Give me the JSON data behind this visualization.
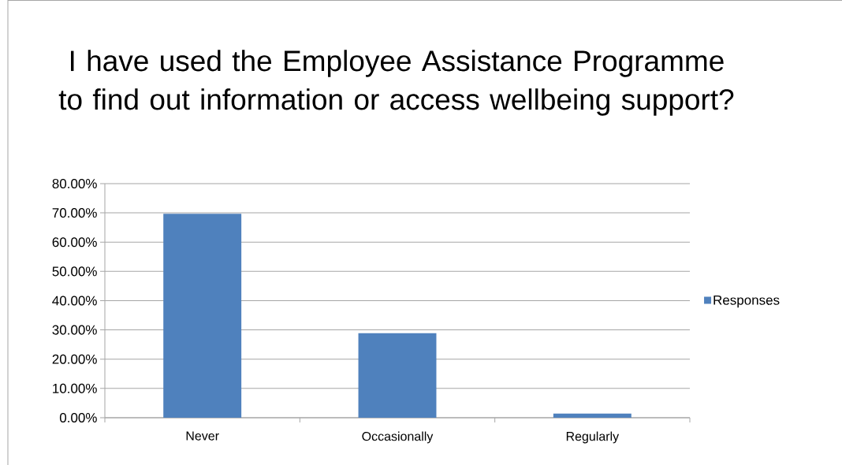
{
  "chart_data": {
    "type": "bar",
    "title": "I have used the Employee Assistance Programme to find out information or access wellbeing support?",
    "categories": [
      "Never",
      "Occasionally",
      "Regularly"
    ],
    "series": [
      {
        "name": "Responses",
        "color": "#4f81bd",
        "values": [
          69.7,
          28.9,
          1.4
        ]
      }
    ],
    "ylim": [
      0,
      80
    ],
    "yticks": [
      {
        "value": 0,
        "label": "0.00%"
      },
      {
        "value": 10,
        "label": "10.00%"
      },
      {
        "value": 20,
        "label": "20.00%"
      },
      {
        "value": 30,
        "label": "30.00%"
      },
      {
        "value": 40,
        "label": "40.00%"
      },
      {
        "value": 50,
        "label": "50.00%"
      },
      {
        "value": 60,
        "label": "60.00%"
      },
      {
        "value": 70,
        "label": "70.00%"
      },
      {
        "value": 80,
        "label": "80.00%"
      }
    ],
    "grid": "y",
    "legend": "right"
  }
}
